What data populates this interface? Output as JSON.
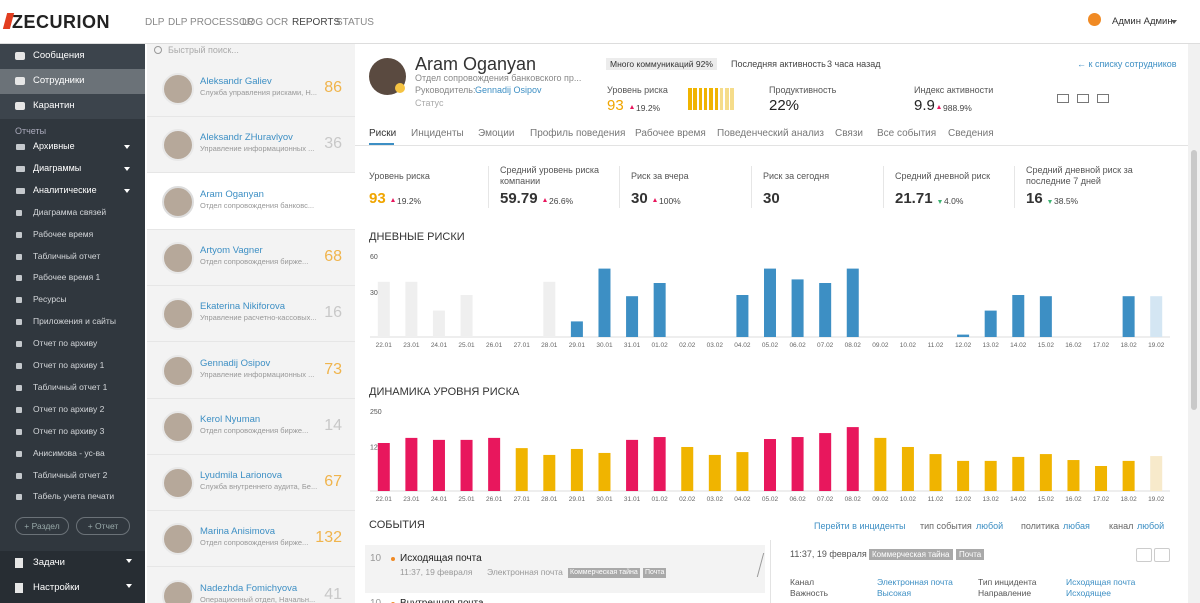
{
  "header": {
    "logo": "ZECURION",
    "nav": [
      "DLP",
      "DLP PROCESSOR",
      "LOG",
      "OCR",
      "REPORTS",
      "STATUS"
    ],
    "user": "Админ Админ"
  },
  "sidebar": {
    "main": [
      "Сообщения",
      "Сотрудники",
      "Карантин"
    ],
    "reports_title": "Отчеты",
    "reports": [
      "Архивные",
      "Диаграммы",
      "Аналитические",
      "Диаграмма связей",
      "Рабочее время",
      "Табличный отчет",
      "Рабочее время 1",
      "Ресурсы",
      "Приложения и сайты",
      "Отчет по архиву",
      "Отчет по архиву 1",
      "Табличный отчет 1",
      "Отчет по архиву 2",
      "Отчет по архиву 3",
      "Анисимова - ус-ва",
      "Табличный отчет 2",
      "Табель учета печати"
    ],
    "buttons": [
      "+ Раздел",
      "+ Отчет"
    ],
    "bottom": [
      "Задачи",
      "Настройки"
    ]
  },
  "search": {
    "placeholder": "Быстрый поиск..."
  },
  "employees": [
    {
      "name": "Aleksandr Galiev",
      "dept": "Служба управления рисками, Н...",
      "score": "86",
      "color": "#f0b44c"
    },
    {
      "name": "Aleksandr ZHuravlyov",
      "dept": "Управление информационных ...",
      "score": "36",
      "color": "#c8c8c8"
    },
    {
      "name": "Aram Oganyan",
      "dept": "Отдел сопровождения банковс..."
    },
    {
      "name": "Artyom Vagner",
      "dept": "Отдел сопровождения бирже...",
      "score": "68",
      "color": "#f0b44c"
    },
    {
      "name": "Ekaterina Nikiforova",
      "dept": "Управление расчетно-кассовых...",
      "score": "16",
      "color": "#c8c8c8"
    },
    {
      "name": "Gennadij Osipov",
      "dept": "Управление информационных ...",
      "score": "73",
      "color": "#f0b44c"
    },
    {
      "name": "Kerol Nyuman",
      "dept": "Отдел сопровождения бирже...",
      "score": "14",
      "color": "#c8c8c8"
    },
    {
      "name": "Lyudmila Larionova",
      "dept": "Служба внутреннего аудита, Бе...",
      "score": "67",
      "color": "#f0b44c"
    },
    {
      "name": "Marina Anisimova",
      "dept": "Отдел сопровождения бирже...",
      "score": "132",
      "color": "#f0b44c"
    },
    {
      "name": "Nadezhda Fomichyova",
      "dept": "Операционный отдел, Начальн...",
      "score": "41",
      "color": "#c8c8c8"
    }
  ],
  "profile": {
    "name": "Aram Oganyan",
    "dept": "Отдел сопровождения банковского пр...",
    "manager_label": "Руководитель:",
    "manager": "Gennadij Osipov",
    "status": "Статус",
    "badge": "Много коммуникаций 92%",
    "activity_label": "Последняя активность",
    "activity": "3 часа назад",
    "back": "← к списку сотрудников",
    "kpis": [
      {
        "label": "Уровень риска",
        "value": "93",
        "change": "19.2%"
      },
      {
        "label": "Продуктивность",
        "value": "22%"
      },
      {
        "label": "Индекс активности",
        "value": "9.9",
        "change": "988.9%"
      }
    ]
  },
  "tabs": [
    "Риски",
    "Инциденты",
    "Эмоции",
    "Профиль поведения",
    "Рабочее время",
    "Поведенческий анализ",
    "Связи",
    "Все события",
    "Сведения"
  ],
  "summary": [
    {
      "label": "Уровень риска",
      "value": "93",
      "change": "19.2%"
    },
    {
      "label": "Средний уровень риска компании",
      "value": "59.79",
      "change": "26.6%"
    },
    {
      "label": "Риск за вчера",
      "value": "30",
      "change": "100%"
    },
    {
      "label": "Риск за сегодня",
      "value": "30"
    },
    {
      "label": "Средний дневной риск",
      "value": "21.71",
      "change": "4.0%"
    },
    {
      "label": "Средний дневной риск за последние 7 дней",
      "value": "16",
      "change": "38.5%"
    }
  ],
  "charts": [
    {
      "type": "bar",
      "title": "ДНЕВНЫЕ РИСКИ",
      "categories": [
        "22.01",
        "23.01",
        "24.01",
        "25.01",
        "26.01",
        "27.01",
        "28.01",
        "29.01",
        "30.01",
        "31.01",
        "01.02",
        "02.02",
        "03.02",
        "04.02",
        "05.02",
        "06.02",
        "07.02",
        "08.02",
        "09.02",
        "10.02",
        "11.02",
        "12.02",
        "13.02",
        "14.02",
        "15.02",
        "16.02",
        "17.02",
        "18.02",
        "19.02"
      ],
      "values": [
        46,
        46,
        22,
        35,
        0,
        0,
        46,
        13,
        57,
        34,
        45,
        0,
        0,
        35,
        57,
        48,
        45,
        57,
        0,
        0,
        0,
        2,
        22,
        35,
        34,
        0,
        0,
        34,
        34
      ],
      "colors": [
        "#efefef",
        "#efefef",
        "#efefef",
        "#efefef",
        "#efefef",
        "#efefef",
        "#efefef",
        "#3d8fc4",
        "#3d8fc4",
        "#3d8fc4",
        "#3d8fc4",
        "#3d8fc4",
        "#3d8fc4",
        "#3d8fc4",
        "#3d8fc4",
        "#3d8fc4",
        "#3d8fc4",
        "#3d8fc4",
        "#3d8fc4",
        "#3d8fc4",
        "#3d8fc4",
        "#3d8fc4",
        "#3d8fc4",
        "#3d8fc4",
        "#3d8fc4",
        "#3d8fc4",
        "#3d8fc4",
        "#3d8fc4",
        "#d4e6f3"
      ],
      "ylim": [
        0,
        60
      ],
      "yticks": [
        30,
        60
      ]
    },
    {
      "type": "bar",
      "title": "ДИНАМИКА УРОВНЯ РИСКА",
      "categories": [
        "22.01",
        "23.01",
        "24.01",
        "25.01",
        "26.01",
        "27.01",
        "28.01",
        "29.01",
        "30.01",
        "31.01",
        "01.02",
        "02.02",
        "03.02",
        "04.02",
        "05.02",
        "06.02",
        "07.02",
        "08.02",
        "09.02",
        "10.02",
        "11.02",
        "12.02",
        "13.02",
        "14.02",
        "15.02",
        "16.02",
        "17.02",
        "18.02",
        "19.02"
      ],
      "values": [
        169,
        187,
        180,
        180,
        187,
        151,
        127,
        148,
        134,
        180,
        190,
        155,
        127,
        137,
        183,
        190,
        204,
        225,
        187,
        155,
        130,
        106,
        106,
        120,
        130,
        109,
        88,
        106,
        123
      ],
      "colors": [
        "#e8175d",
        "#e8175d",
        "#e8175d",
        "#e8175d",
        "#e8175d",
        "#f0b400",
        "#f0b400",
        "#f0b400",
        "#f0b400",
        "#e8175d",
        "#e8175d",
        "#f0b400",
        "#f0b400",
        "#f0b400",
        "#e8175d",
        "#e8175d",
        "#e8175d",
        "#e8175d",
        "#f0b400",
        "#f0b400",
        "#f0b400",
        "#f0b400",
        "#f0b400",
        "#f0b400",
        "#f0b400",
        "#f0b400",
        "#f0b400",
        "#f0b400",
        "#f7eacb"
      ],
      "ylim": [
        0,
        250
      ],
      "yticks": [
        125,
        250
      ]
    }
  ],
  "events": {
    "title": "СОБЫТИЯ",
    "link": "Перейти в инциденты",
    "filters": [
      {
        "label": "тип события",
        "value": "любой"
      },
      {
        "label": "политика",
        "value": "любая"
      },
      {
        "label": "канал",
        "value": "любой"
      }
    ],
    "items": [
      {
        "score": "10",
        "title": "Исходящая почта",
        "time": "11:37, 19 февраля",
        "channel": "Электронная почта",
        "tags": [
          "Коммерческая тайна",
          "Почта"
        ]
      },
      {
        "score": "10",
        "title": "Внутренняя почта"
      }
    ],
    "detail": {
      "time": "11:37, 19 февраля",
      "tags": [
        "Коммерческая тайна",
        "Почта"
      ],
      "fields": [
        {
          "label": "Канал",
          "value": "Электронная почта"
        },
        {
          "label": "Важность",
          "value": "Высокая"
        },
        {
          "label": "Тип инцидента",
          "value": "Исходящая почта"
        },
        {
          "label": "Направление",
          "value": "Исходящее"
        }
      ]
    }
  }
}
